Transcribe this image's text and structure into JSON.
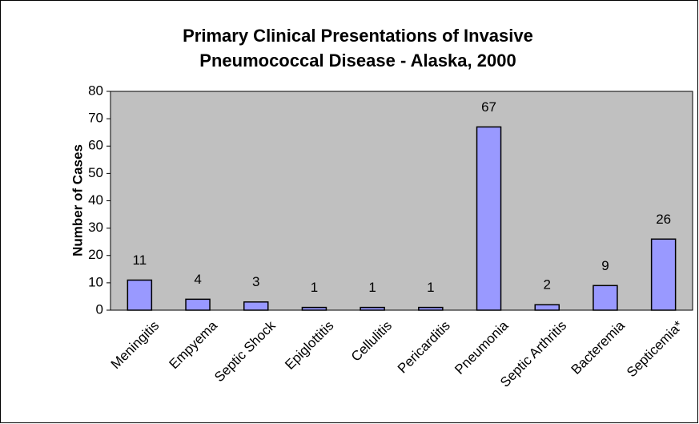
{
  "chart_data": {
    "type": "bar",
    "title": [
      "Primary Clinical Presentations of Invasive",
      "Pneumococcal Disease -  Alaska, 2000"
    ],
    "y_label": "Number of Cases",
    "categories": [
      "Meningitis",
      "Empyema",
      "Septic Shock",
      "Epiglottitis",
      "Cellulitis",
      "Pericarditis",
      "Pneumonia",
      "Septic Arthritis",
      "Bacteremia",
      "Septicemia*"
    ],
    "values": [
      11,
      4,
      3,
      1,
      1,
      1,
      67,
      2,
      9,
      26
    ],
    "color": "#9999ff",
    "plot_background": "#c0c0c0",
    "ylim": [
      0,
      80
    ],
    "yticks": [
      0,
      10,
      20,
      30,
      40,
      50,
      60,
      70,
      80
    ]
  }
}
